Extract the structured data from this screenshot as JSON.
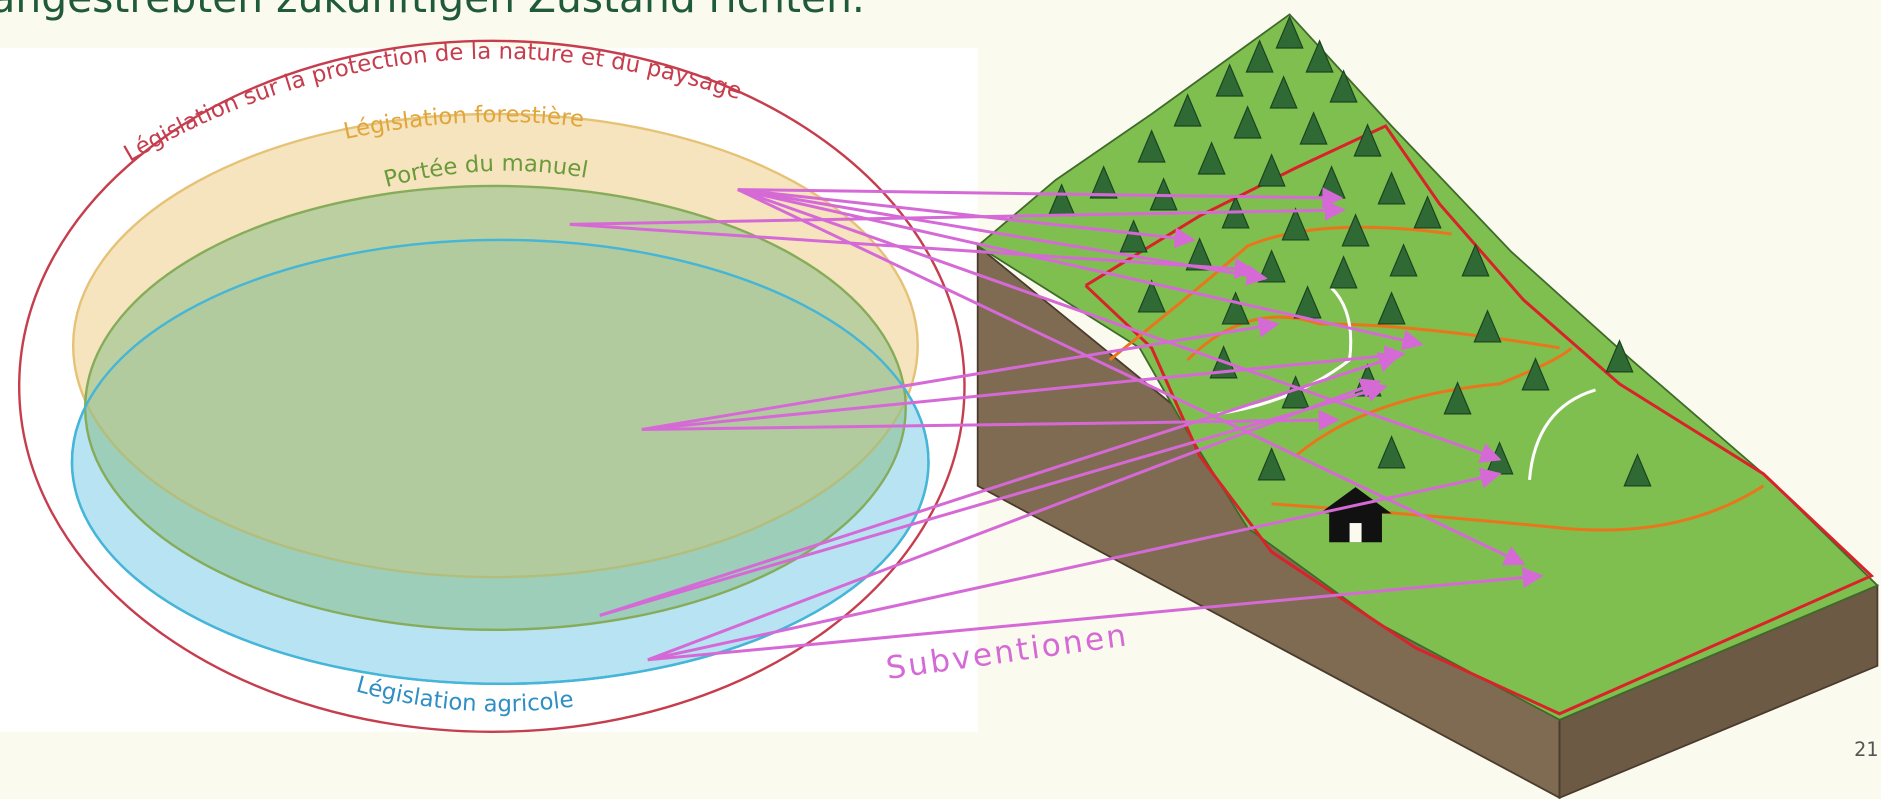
{
  "slide": {
    "title_fragment": "angestrebten zukünftigen Zustand richten.",
    "page_number": "21"
  },
  "diagram": {
    "outer_label": "Législation sur la protection de la nature et du paysage",
    "forest_label": "Législation forestière",
    "manual_label": "Portée du manuel",
    "agri_label": "Législation agricole",
    "arrow_label": "Subventionen"
  }
}
